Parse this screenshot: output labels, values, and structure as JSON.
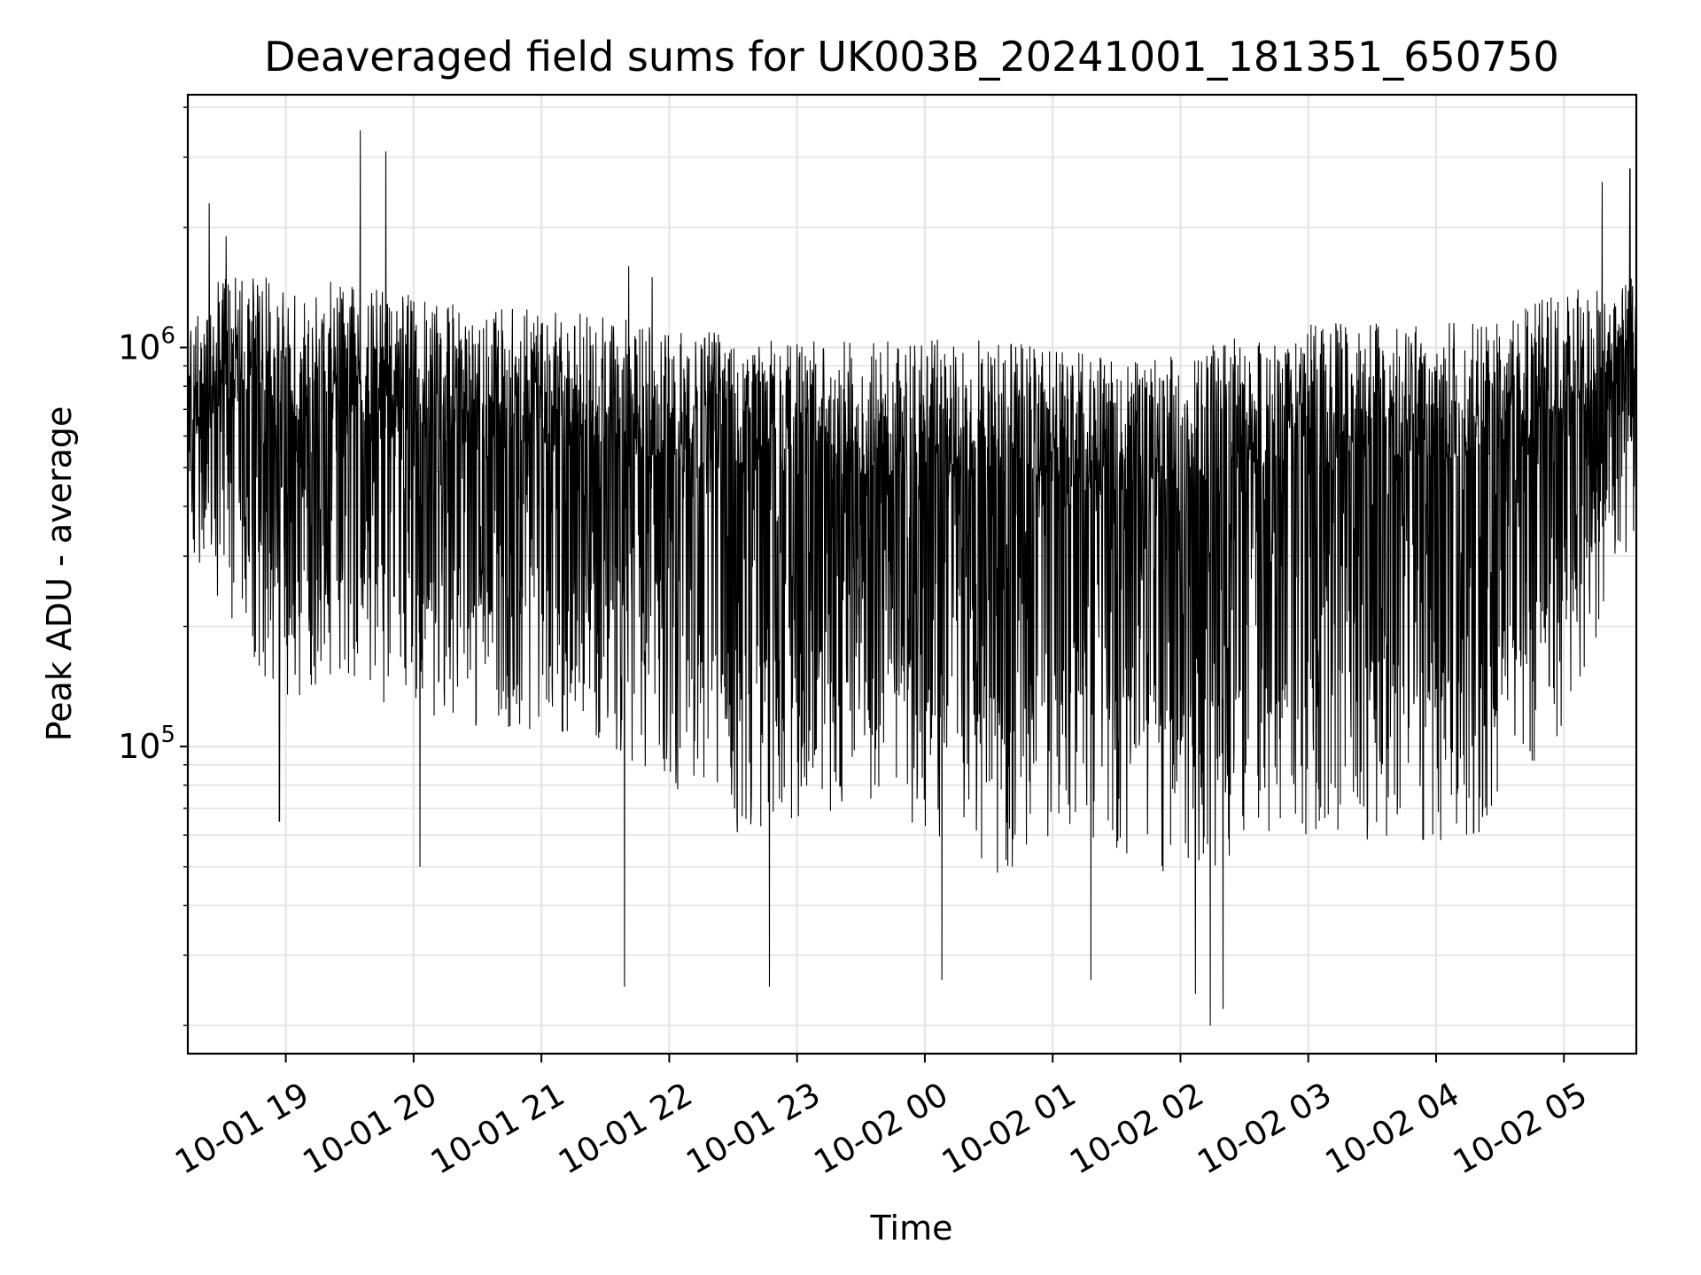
{
  "chart_data": {
    "type": "line",
    "title": "Deaveraged field sums for UK003B_20241001_181351_650750",
    "xlabel": "Time",
    "ylabel": "Peak ADU - average",
    "yscale": "log",
    "xlim": [
      "2024-10-01T18:14",
      "2024-10-02T05:34"
    ],
    "ylim": [
      17000,
      4300000
    ],
    "grid": true,
    "line_color": "#000000",
    "grid_color": "#e5e5e5",
    "x_ticks": [
      {
        "value": "2024-10-01T19:00",
        "label": "10-01 19"
      },
      {
        "value": "2024-10-01T20:00",
        "label": "10-01 20"
      },
      {
        "value": "2024-10-01T21:00",
        "label": "10-01 21"
      },
      {
        "value": "2024-10-01T22:00",
        "label": "10-01 22"
      },
      {
        "value": "2024-10-01T23:00",
        "label": "10-01 23"
      },
      {
        "value": "2024-10-02T00:00",
        "label": "10-02 00"
      },
      {
        "value": "2024-10-02T01:00",
        "label": "10-02 01"
      },
      {
        "value": "2024-10-02T02:00",
        "label": "10-02 02"
      },
      {
        "value": "2024-10-02T03:00",
        "label": "10-02 03"
      },
      {
        "value": "2024-10-02T04:00",
        "label": "10-02 04"
      },
      {
        "value": "2024-10-02T05:00",
        "label": "10-02 05"
      }
    ],
    "y_ticks": [
      {
        "value": 100000,
        "base": "10",
        "exp": "5"
      },
      {
        "value": 1000000,
        "base": "10",
        "exp": "6"
      }
    ],
    "series": [
      {
        "color": "#000000",
        "envelope": [
          {
            "x": "2024-10-01T18:14",
            "upper": 1200000,
            "lower": 320000
          },
          {
            "x": "2024-10-01T18:30",
            "upper": 1500000,
            "lower": 200000
          },
          {
            "x": "2024-10-01T19:00",
            "upper": 1500000,
            "lower": 130000
          },
          {
            "x": "2024-10-01T19:30",
            "upper": 1450000,
            "lower": 140000
          },
          {
            "x": "2024-10-01T20:00",
            "upper": 1350000,
            "lower": 120000
          },
          {
            "x": "2024-10-01T20:30",
            "upper": 1250000,
            "lower": 110000
          },
          {
            "x": "2024-10-01T21:00",
            "upper": 1250000,
            "lower": 105000
          },
          {
            "x": "2024-10-01T21:30",
            "upper": 1200000,
            "lower": 100000
          },
          {
            "x": "2024-10-01T22:00",
            "upper": 1150000,
            "lower": 80000
          },
          {
            "x": "2024-10-01T22:30",
            "upper": 1100000,
            "lower": 60000
          },
          {
            "x": "2024-10-01T23:00",
            "upper": 1050000,
            "lower": 65000
          },
          {
            "x": "2024-10-01T23:30",
            "upper": 1050000,
            "lower": 65000
          },
          {
            "x": "2024-10-02T00:00",
            "upper": 1050000,
            "lower": 60000
          },
          {
            "x": "2024-10-02T00:30",
            "upper": 1050000,
            "lower": 45000
          },
          {
            "x": "2024-10-02T01:00",
            "upper": 1000000,
            "lower": 60000
          },
          {
            "x": "2024-10-02T01:30",
            "upper": 950000,
            "lower": 55000
          },
          {
            "x": "2024-10-02T02:00",
            "upper": 950000,
            "lower": 45000
          },
          {
            "x": "2024-10-02T02:30",
            "upper": 1100000,
            "lower": 55000
          },
          {
            "x": "2024-10-02T03:00",
            "upper": 1150000,
            "lower": 60000
          },
          {
            "x": "2024-10-02T03:30",
            "upper": 1150000,
            "lower": 58000
          },
          {
            "x": "2024-10-02T04:00",
            "upper": 1150000,
            "lower": 58000
          },
          {
            "x": "2024-10-02T04:30",
            "upper": 1200000,
            "lower": 62000
          },
          {
            "x": "2024-10-02T05:00",
            "upper": 1400000,
            "lower": 110000
          },
          {
            "x": "2024-10-02T05:34",
            "upper": 1500000,
            "lower": 350000
          }
        ],
        "spikes": [
          {
            "x": "2024-10-01T18:24",
            "y": 2300000
          },
          {
            "x": "2024-10-01T18:32",
            "y": 1900000
          },
          {
            "x": "2024-10-01T19:35",
            "y": 3500000
          },
          {
            "x": "2024-10-01T19:47",
            "y": 3100000
          },
          {
            "x": "2024-10-01T21:41",
            "y": 1600000
          },
          {
            "x": "2024-10-01T21:52",
            "y": 1500000
          },
          {
            "x": "2024-10-02T05:18",
            "y": 2600000
          },
          {
            "x": "2024-10-02T05:31",
            "y": 2800000
          },
          {
            "x": "2024-10-01T18:57",
            "y": 65000
          },
          {
            "x": "2024-10-01T20:03",
            "y": 50000
          },
          {
            "x": "2024-10-01T21:39",
            "y": 25000
          },
          {
            "x": "2024-10-01T22:47",
            "y": 25000
          },
          {
            "x": "2024-10-02T00:08",
            "y": 26000
          },
          {
            "x": "2024-10-02T01:18",
            "y": 26000
          },
          {
            "x": "2024-10-02T02:07",
            "y": 24000
          },
          {
            "x": "2024-10-02T02:14",
            "y": 20000
          },
          {
            "x": "2024-10-02T02:20",
            "y": 22000
          }
        ]
      }
    ]
  }
}
